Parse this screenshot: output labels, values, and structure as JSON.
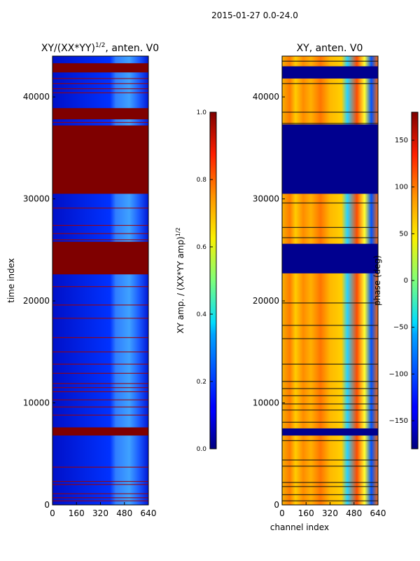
{
  "figure": {
    "suptitle": "2015-01-27 0.0-24.0"
  },
  "chart_data": [
    {
      "type": "heatmap",
      "title": "XY/(XX*YY)^1/2, anten. V0",
      "title_main": "XY/(XX*YY)",
      "title_sup": "1/2",
      "title_rest": ", anten. V0",
      "xlabel": "",
      "ylabel": "time index",
      "xlim": [
        0,
        640
      ],
      "ylim": [
        0,
        44000
      ],
      "xticks": [
        0,
        160,
        320,
        480,
        640
      ],
      "yticks": [
        0,
        10000,
        20000,
        30000,
        40000
      ],
      "colorbar": {
        "label": "XY amp. / (XX*YY amp)^1/2",
        "label_main": "XY amp. / (XX*YY amp)",
        "label_sup": "1/2",
        "range": [
          0.0,
          1.0
        ],
        "ticks": [
          "0.0",
          "0.2",
          "0.4",
          "0.6",
          "0.8",
          "1.0"
        ],
        "colormap": "jet"
      },
      "saturated_bands": [
        [
          42400,
          43300
        ],
        [
          37800,
          38900
        ],
        [
          30500,
          37200
        ],
        [
          22600,
          25800
        ],
        [
          6800,
          7600
        ]
      ],
      "thin_lines": [
        41800,
        41300,
        40800,
        40400,
        37500,
        29100,
        27400,
        26600,
        26000,
        21400,
        19600,
        18300,
        16400,
        15000,
        13800,
        12900,
        11900,
        11500,
        11100,
        10300,
        9600,
        8800,
        3700,
        2300,
        2000,
        1100,
        700,
        400
      ]
    },
    {
      "type": "heatmap",
      "title": "XY, anten. V0",
      "xlabel": "channel index",
      "ylabel": "",
      "xlim": [
        0,
        640
      ],
      "ylim": [
        0,
        44000
      ],
      "xticks": [
        0,
        160,
        320,
        480,
        640
      ],
      "yticks": [
        0,
        10000,
        20000,
        30000,
        40000
      ],
      "colorbar": {
        "label": "phase (deg)",
        "range": [
          -180,
          180
        ],
        "ticks": [
          "−150",
          "−100",
          "−50",
          "0",
          "50",
          "100",
          "150"
        ],
        "tick_values": [
          -150,
          -100,
          -50,
          0,
          50,
          100,
          150
        ],
        "colormap": "jet"
      },
      "dark_bands": [
        [
          41800,
          43000
        ],
        [
          30500,
          37300
        ],
        [
          22700,
          25600
        ],
        [
          6800,
          7500
        ]
      ],
      "thin_lines": [
        43500,
        41300,
        38500,
        37400,
        29600,
        27200,
        26200,
        19800,
        17600,
        16300,
        13800,
        12100,
        11400,
        10700,
        9900,
        9300,
        8100,
        6300,
        4400,
        3800,
        2200,
        1800,
        1000,
        400
      ]
    }
  ]
}
